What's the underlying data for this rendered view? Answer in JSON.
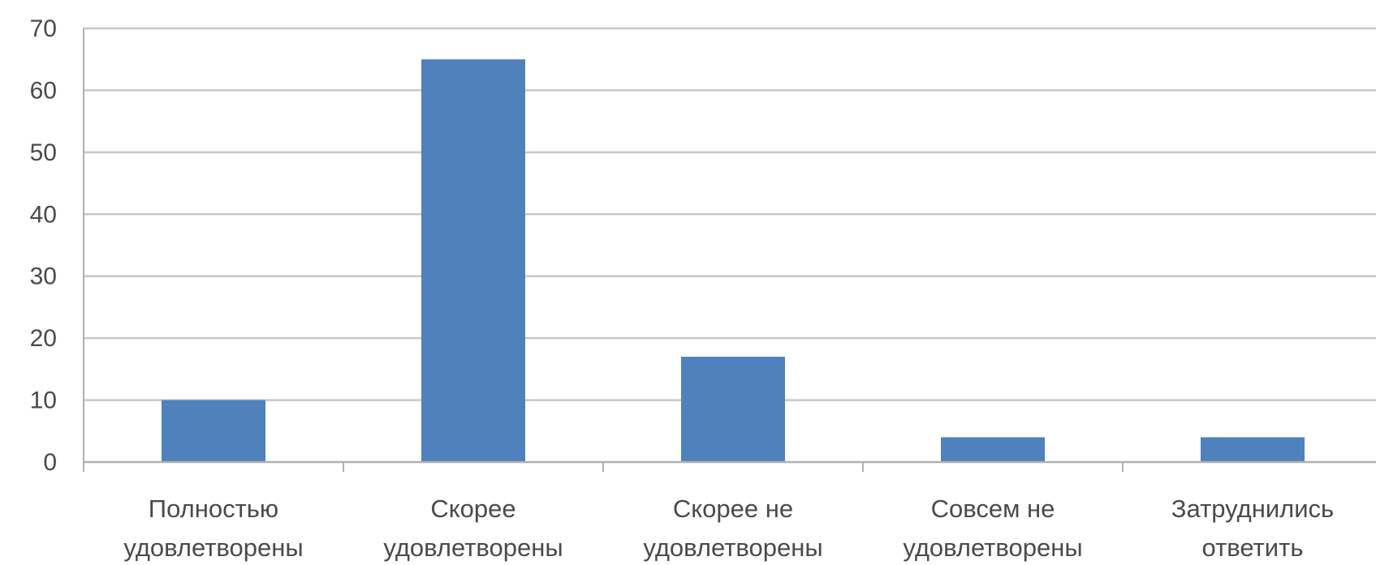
{
  "chart_data": {
    "type": "bar",
    "title": "",
    "xlabel": "",
    "ylabel": "",
    "categories": [
      [
        "Полностью",
        "удовлетворены"
      ],
      [
        "Скорее",
        "удовлетворены"
      ],
      [
        "Скорее не",
        "удовлетворены"
      ],
      [
        "Совсем не",
        "удовлетворены"
      ],
      [
        "Затруднились",
        "ответить"
      ]
    ],
    "values": [
      10,
      65,
      17,
      4,
      4
    ],
    "ylim": [
      0,
      70
    ],
    "yticks": [
      0,
      10,
      20,
      30,
      40,
      50,
      60,
      70
    ],
    "grid": true,
    "legend": "none",
    "colors": {
      "bar": "#4f81bd",
      "grid": "#c8c8c8",
      "axis": "#b0b0b0",
      "text": "#4a4a4a"
    }
  }
}
